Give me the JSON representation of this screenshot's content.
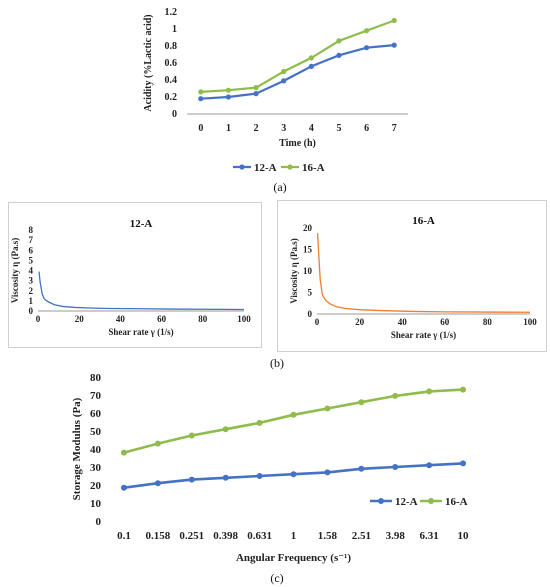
{
  "captions": {
    "a": "(a)",
    "b": "(b)",
    "c": "(c)"
  },
  "chart_data": [
    {
      "id": "a",
      "type": "line",
      "xlabel": "Time (h)",
      "ylabel": "Acidity (%Lactic acid)",
      "x": [
        0,
        1,
        2,
        3,
        4,
        5,
        6,
        7
      ],
      "ylim": [
        0,
        1.2
      ],
      "yticks": [
        "0",
        "0.2",
        "0.4",
        "0.6",
        "0.8",
        "1",
        "1.2"
      ],
      "grid": false,
      "legend_position": "bottom",
      "series": [
        {
          "name": "12-A",
          "color": "#4472c4",
          "values": [
            0.18,
            0.2,
            0.24,
            0.39,
            0.56,
            0.69,
            0.78,
            0.81
          ]
        },
        {
          "name": "16-A",
          "color": "#8fbc4a",
          "values": [
            0.26,
            0.28,
            0.31,
            0.5,
            0.66,
            0.86,
            0.98,
            1.1
          ]
        }
      ]
    },
    {
      "id": "b1",
      "type": "line",
      "title": "12-A",
      "xlabel": "Shear rate γ (1/s)",
      "ylabel": "Viscosity η (Pa.s)",
      "xlim": [
        0,
        100
      ],
      "xticks": [
        "0",
        "20",
        "40",
        "60",
        "80",
        "100"
      ],
      "ylim": [
        0,
        8
      ],
      "yticks": [
        "0",
        "1",
        "2",
        "3",
        "4",
        "5",
        "6",
        "7",
        "8"
      ],
      "grid": false,
      "series": [
        {
          "color": "#4472c4",
          "x": [
            0.5,
            1,
            2,
            3,
            5,
            8,
            12,
            18,
            25,
            35,
            50,
            65,
            80,
            100
          ],
          "values": [
            3.9,
            2.9,
            1.7,
            1.2,
            0.9,
            0.62,
            0.45,
            0.35,
            0.3,
            0.25,
            0.22,
            0.19,
            0.17,
            0.15
          ]
        }
      ]
    },
    {
      "id": "b2",
      "type": "line",
      "title": "16-A",
      "xlabel": "Shear rate γ (1/s)",
      "ylabel": "Viscosity η (Pa.s)",
      "xlim": [
        0,
        100
      ],
      "xticks": [
        "0",
        "20",
        "40",
        "60",
        "80",
        "100"
      ],
      "ylim": [
        0,
        20
      ],
      "yticks": [
        "0",
        "5",
        "10",
        "15",
        "20"
      ],
      "grid": false,
      "series": [
        {
          "color": "#ed7d31",
          "x": [
            0.3,
            0.8,
            1.5,
            2.5,
            4,
            6,
            9,
            13,
            20,
            30,
            45,
            60,
            80,
            100
          ],
          "values": [
            18.8,
            14,
            8,
            4.5,
            3.2,
            2.4,
            1.7,
            1.3,
            1.0,
            0.8,
            0.6,
            0.5,
            0.45,
            0.4
          ]
        }
      ]
    },
    {
      "id": "c",
      "type": "line",
      "xlabel": "Angular Frequency (s⁻¹)",
      "ylabel": "Storage Modulus (Pa)",
      "categories": [
        "0.1",
        "0.158",
        "0.251",
        "0.398",
        "0.631",
        "1",
        "1.58",
        "2.51",
        "3.98",
        "6.31",
        "10"
      ],
      "ylim": [
        0,
        80
      ],
      "yticks": [
        "0",
        "10",
        "20",
        "30",
        "40",
        "50",
        "60",
        "70",
        "80"
      ],
      "grid": false,
      "legend_position": "bottom-right",
      "series": [
        {
          "name": "12-A",
          "color": "#4472c4",
          "values": [
            18.5,
            21,
            23,
            24,
            25,
            26,
            27,
            29,
            30,
            31,
            32
          ]
        },
        {
          "name": "16-A",
          "color": "#8fbc4a",
          "values": [
            38,
            43,
            47.5,
            51,
            54.5,
            59,
            62.5,
            66,
            69.5,
            72,
            73
          ]
        }
      ]
    }
  ]
}
